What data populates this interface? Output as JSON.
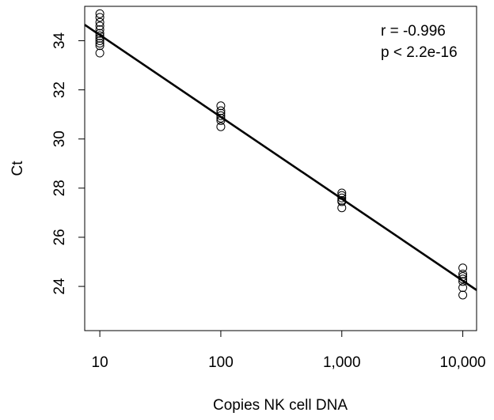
{
  "chart_data": {
    "type": "scatter",
    "xscale": "log",
    "xlabel": "Copies NK cell DNA",
    "ylabel": "Ct",
    "xlim": [
      7.5,
      13000
    ],
    "ylim": [
      22.2,
      35.4
    ],
    "x_ticks": [
      10,
      100,
      1000,
      10000
    ],
    "x_tick_labels": [
      "10",
      "100",
      "1,000",
      "10,000"
    ],
    "y_ticks": [
      24,
      26,
      28,
      30,
      32,
      34
    ],
    "y_tick_labels": [
      "24",
      "26",
      "28",
      "30",
      "32",
      "34"
    ],
    "grid": false,
    "series": [
      {
        "points": [
          {
            "x": 10,
            "y": 35.1
          },
          {
            "x": 10,
            "y": 34.95
          },
          {
            "x": 10,
            "y": 34.75
          },
          {
            "x": 10,
            "y": 34.6
          },
          {
            "x": 10,
            "y": 34.45
          },
          {
            "x": 10,
            "y": 34.3
          },
          {
            "x": 10,
            "y": 34.2
          },
          {
            "x": 10,
            "y": 34.1
          },
          {
            "x": 10,
            "y": 34.0
          },
          {
            "x": 10,
            "y": 33.9
          },
          {
            "x": 10,
            "y": 33.8
          },
          {
            "x": 10,
            "y": 33.5
          },
          {
            "x": 100,
            "y": 31.35
          },
          {
            "x": 100,
            "y": 31.15
          },
          {
            "x": 100,
            "y": 31.05
          },
          {
            "x": 100,
            "y": 30.95
          },
          {
            "x": 100,
            "y": 30.85
          },
          {
            "x": 100,
            "y": 30.75
          },
          {
            "x": 100,
            "y": 30.5
          },
          {
            "x": 1000,
            "y": 27.8
          },
          {
            "x": 1000,
            "y": 27.7
          },
          {
            "x": 1000,
            "y": 27.6
          },
          {
            "x": 1000,
            "y": 27.5
          },
          {
            "x": 1000,
            "y": 27.45
          },
          {
            "x": 1000,
            "y": 27.2
          },
          {
            "x": 10000,
            "y": 24.75
          },
          {
            "x": 10000,
            "y": 24.5
          },
          {
            "x": 10000,
            "y": 24.4
          },
          {
            "x": 10000,
            "y": 24.3
          },
          {
            "x": 10000,
            "y": 24.2
          },
          {
            "x": 10000,
            "y": 23.95
          },
          {
            "x": 10000,
            "y": 23.65
          }
        ]
      }
    ],
    "regression_line": {
      "from": {
        "x": 7.5,
        "y": 34.65
      },
      "to": {
        "x": 13000,
        "y": 23.85
      }
    },
    "annotations": [
      "r =  -0.996",
      "p < 2.2e-16"
    ]
  }
}
